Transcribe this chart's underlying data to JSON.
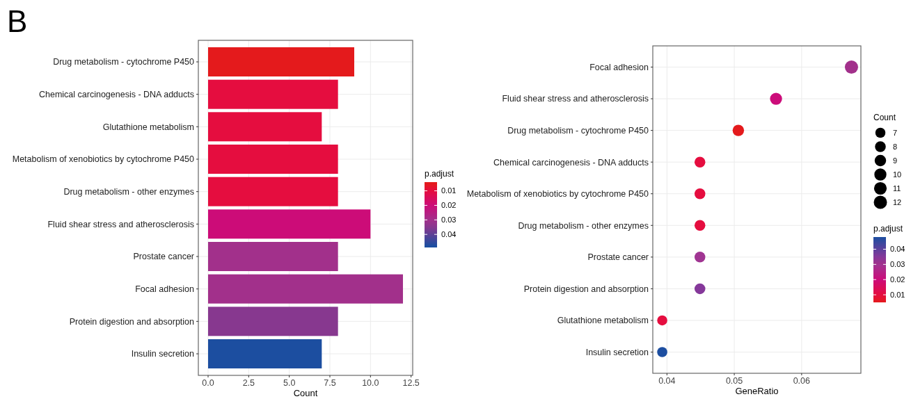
{
  "chart_data": [
    {
      "type": "bar",
      "orientation": "horizontal",
      "annotations": [
        "B"
      ],
      "categories": [
        "Drug metabolism - cytochrome P450",
        "Chemical carcinogenesis - DNA adducts",
        "Glutathione metabolism",
        "Metabolism of xenobiotics by cytochrome P450",
        "Drug metabolism - other enzymes",
        "Fluid shear stress and atherosclerosis",
        "Prostate cancer",
        "Focal adhesion",
        "Protein digestion and absorption",
        "Insulin secretion"
      ],
      "values": [
        9,
        8,
        7,
        8,
        8,
        10,
        8,
        12,
        8,
        7
      ],
      "cvalues": [
        0.005,
        0.01,
        0.01,
        0.01,
        0.01,
        0.02,
        0.03,
        0.03,
        0.035,
        0.048
      ],
      "colors": [
        "#e41a1c",
        "#e50d3f",
        "#e50d3f",
        "#e50d3f",
        "#e50d3f",
        "#cc0c78",
        "#a2308b",
        "#a2308b",
        "#87388f",
        "#1c4ea0"
      ],
      "xlabel": "Count",
      "xlim": [
        -0.6,
        12.6
      ],
      "xticks": [
        {
          "value": 0,
          "label": "0.0"
        },
        2.5,
        {
          "value": 5,
          "label": "5.0"
        },
        7.5,
        {
          "value": 10,
          "label": "10.0"
        },
        12.5
      ],
      "clabel": "p.adjust",
      "clim": [
        0.049,
        0.004
      ],
      "cticks": [
        0.01,
        0.02,
        0.03,
        0.04
      ],
      "grid": true
    },
    {
      "type": "bubble",
      "orientation": "horizontal",
      "categories": [
        "Focal adhesion",
        "Fluid shear stress and atherosclerosis",
        "Drug metabolism - cytochrome P450",
        "Chemical carcinogenesis - DNA adducts",
        "Metabolism of xenobiotics by cytochrome P450",
        "Drug metabolism - other enzymes",
        "Prostate cancer",
        "Protein digestion and absorption",
        "Glutathione metabolism",
        "Insulin secretion"
      ],
      "values": [
        0.0674,
        0.0562,
        0.0506,
        0.0449,
        0.0449,
        0.0449,
        0.0449,
        0.0449,
        0.0393,
        0.0393
      ],
      "sizes": [
        12,
        10,
        9,
        8,
        8,
        8,
        8,
        8,
        7,
        7
      ],
      "size_legend": [
        7,
        8,
        9,
        10,
        11,
        12
      ],
      "legend_title": "Count",
      "cvalues": [
        0.03,
        0.02,
        0.005,
        0.01,
        0.01,
        0.01,
        0.03,
        0.035,
        0.01,
        0.048
      ],
      "colors": [
        "#a2308b",
        "#cc0c7a",
        "#e41a1c",
        "#e50d3f",
        "#e50d3f",
        "#e50d3f",
        "#a03592",
        "#85389a",
        "#e50d3f",
        "#1c4ea0"
      ],
      "xlabel": "GeneRatio",
      "xlim": [
        0.0379,
        0.0688
      ],
      "xticks": [
        0.04,
        0.05,
        0.06
      ],
      "clabel": "p.adjust",
      "clim": [
        0.005,
        0.048
      ],
      "cticks": [
        0.01,
        0.02,
        0.03,
        0.04
      ],
      "grid": true,
      "marker": "circle"
    }
  ]
}
